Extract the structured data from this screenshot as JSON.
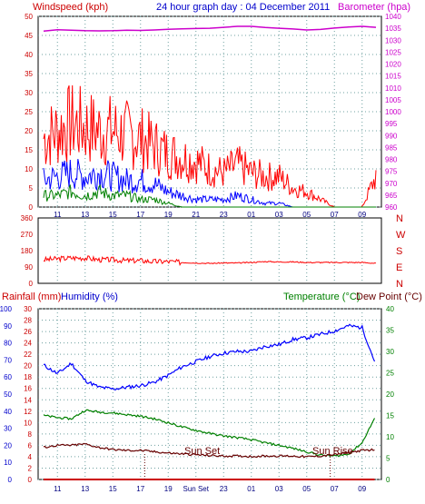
{
  "header": {
    "windspeed_label": "Windspeed (kph)",
    "title": "24 hour graph day : 04 December 2011",
    "barometer_label": "Barometer (hpa)",
    "colors": {
      "windspeed": "#cc0000",
      "title": "#0000cc",
      "barometer": "#cc00cc"
    }
  },
  "lower_header": {
    "rainfall_label": "Rainfall (mm)",
    "humidity_label": "Humidity (%)",
    "temperature_label": "Temperature (°C)",
    "dewpoint_label": "Dew Point (°C)"
  },
  "markers": {
    "sun_set": "Sun Set",
    "sun_rise": "Sun Rise"
  },
  "chart_data": [
    {
      "type": "line",
      "id": "wind_baro",
      "title": "24 hour graph day : 04 December 2011",
      "ylabel": "Windspeed (kph)",
      "ylabel_right": "Barometer (hpa)",
      "ylim": [
        0,
        50
      ],
      "ylim_right": [
        960,
        1040
      ],
      "yticks": [
        "0",
        "5",
        "10",
        "15",
        "20",
        "25",
        "30",
        "35",
        "40",
        "45",
        "50"
      ],
      "yticks_right": [
        "960",
        "965",
        "970",
        "975",
        "980",
        "985",
        "990",
        "995",
        "1000",
        "1005",
        "1010",
        "1015",
        "1020",
        "1025",
        "1030",
        "1035",
        "1040"
      ],
      "x_ticks": [
        "11",
        "13",
        "15",
        "17",
        "19",
        "21",
        "23",
        "01",
        "03",
        "05",
        "07",
        "09"
      ],
      "grid": true,
      "series": [
        {
          "name": "Barometer (hpa)",
          "color": "#cc00cc",
          "axis": "right",
          "x": [
            0,
            1,
            2,
            3,
            4,
            5,
            6,
            7,
            8,
            9,
            10,
            11,
            12,
            13,
            14,
            15,
            16,
            17,
            18,
            19,
            20,
            21,
            22,
            23,
            24
          ],
          "values": [
            1033.8,
            1034.4,
            1034.2,
            1034.0,
            1033.9,
            1034.0,
            1034.2,
            1034.1,
            1034.3,
            1034.6,
            1034.8,
            1034.9,
            1035.0,
            1035.4,
            1035.8,
            1035.8,
            1035.3,
            1035.0,
            1034.7,
            1034.3,
            1034.5,
            1035.1,
            1035.5,
            1035.8,
            1035.4
          ]
        },
        {
          "name": "Wind gust",
          "color": "#ff0000",
          "axis": "left",
          "x": [
            0,
            1,
            2,
            3,
            4,
            5,
            6,
            7,
            8,
            9,
            10,
            11,
            12,
            13,
            14,
            15,
            16,
            17,
            18,
            19,
            20,
            21,
            22,
            23,
            24
          ],
          "values": [
            18,
            20,
            22,
            21,
            20,
            20,
            19,
            18,
            16,
            14,
            13,
            12,
            10,
            9,
            11,
            9,
            8,
            8,
            5,
            4,
            2,
            0,
            0,
            0,
            8
          ]
        },
        {
          "name": "Average wind",
          "color": "#0000ff",
          "axis": "left",
          "x": [
            0,
            1,
            2,
            3,
            4,
            5,
            6,
            7,
            8,
            9,
            10,
            11,
            12,
            13,
            14,
            15,
            16,
            17,
            18,
            19,
            20,
            21,
            22,
            23,
            24
          ],
          "values": [
            7,
            8,
            9,
            8,
            9,
            8,
            7,
            7,
            6,
            4,
            3,
            2,
            2,
            2,
            3,
            2,
            1,
            1,
            0,
            0,
            0,
            0,
            0,
            0,
            0
          ]
        },
        {
          "name": "Wind calm",
          "color": "#008000",
          "axis": "left",
          "x": [
            0,
            1,
            2,
            3,
            4,
            5,
            6,
            7,
            8,
            9,
            10,
            11,
            12,
            13,
            14,
            15,
            16,
            17,
            18,
            19,
            20,
            21,
            22,
            23,
            24
          ],
          "values": [
            3,
            3,
            4,
            3,
            4,
            3,
            3,
            2,
            2,
            1,
            0,
            0,
            0,
            0,
            0,
            0,
            0,
            0,
            0,
            0,
            0,
            0,
            0,
            0,
            0
          ]
        }
      ]
    },
    {
      "type": "line",
      "id": "direction",
      "ylim": [
        0,
        360
      ],
      "yticks": [
        "0",
        "90",
        "180",
        "270",
        "360"
      ],
      "yticks_right": [
        "N",
        "E",
        "S",
        "W",
        "N"
      ],
      "x_ticks": [
        "11",
        "13",
        "15",
        "17",
        "19",
        "21",
        "23",
        "01",
        "03",
        "05",
        "07",
        "09"
      ],
      "series": [
        {
          "name": "Wind direction",
          "color": "#ff0000",
          "x": [
            0,
            1,
            2,
            3,
            4,
            5,
            6,
            7,
            8,
            9,
            10,
            11,
            12,
            13,
            14,
            15,
            16,
            17,
            18,
            19,
            20,
            21,
            22,
            23,
            24
          ],
          "values": [
            130,
            135,
            140,
            140,
            130,
            130,
            125,
            125,
            120,
            120,
            115,
            112,
            110,
            112,
            112,
            115,
            120,
            118,
            118,
            115,
            115,
            115,
            115,
            115,
            110
          ]
        }
      ]
    },
    {
      "type": "line",
      "id": "temp_hum_rain",
      "ylabel": "Humidity (%)",
      "ylabel_right": "Temperature (°C)",
      "ylim": [
        0,
        100
      ],
      "ylim_right": [
        0,
        40
      ],
      "yticks_humidity": [
        "0",
        "10",
        "20",
        "30",
        "40",
        "50",
        "60",
        "70",
        "80",
        "90",
        "100"
      ],
      "yticks_rainfall": [
        "0",
        "2",
        "4",
        "6",
        "8",
        "10",
        "12",
        "14",
        "16",
        "18",
        "20",
        "22",
        "24",
        "26",
        "28",
        "30"
      ],
      "yticks_right": [
        "0",
        "5",
        "10",
        "15",
        "20",
        "25",
        "30",
        "35",
        "40"
      ],
      "x_ticks": [
        "11",
        "13",
        "15",
        "17",
        "19",
        "Sun Set",
        "23",
        "01",
        "03",
        "05",
        "07",
        "09"
      ],
      "annotations": [
        "Sun Set",
        "Sun Rise"
      ],
      "series": [
        {
          "name": "Humidity (%)",
          "color": "#0000ff",
          "axis": "left",
          "x": [
            0,
            1,
            2,
            3,
            4,
            5,
            6,
            7,
            8,
            9,
            10,
            11,
            12,
            13,
            14,
            15,
            16,
            17,
            18,
            19,
            20,
            21,
            22,
            23,
            24
          ],
          "values": [
            67,
            62,
            68,
            58,
            54,
            53,
            54,
            55,
            57,
            61,
            66,
            69,
            72,
            74,
            75,
            75,
            78,
            79,
            82,
            83,
            85,
            87,
            90,
            89,
            67
          ]
        },
        {
          "name": "Temperature (°C)",
          "color": "#008000",
          "axis": "right",
          "x": [
            0,
            1,
            2,
            3,
            4,
            5,
            6,
            7,
            8,
            9,
            10,
            11,
            12,
            13,
            14,
            15,
            16,
            17,
            18,
            19,
            20,
            21,
            22,
            23,
            24
          ],
          "values": [
            15,
            14.5,
            14.2,
            16.2,
            15.8,
            15.6,
            15.2,
            14.8,
            14.2,
            13.3,
            12.3,
            11.5,
            10.8,
            10.2,
            9.8,
            9.3,
            8.6,
            8.0,
            7.3,
            6.5,
            5.7,
            5.5,
            5.9,
            8.6,
            15
          ]
        },
        {
          "name": "Dew Point (°C)",
          "color": "#660000",
          "axis": "right",
          "x": [
            0,
            1,
            2,
            3,
            4,
            5,
            6,
            7,
            8,
            9,
            10,
            11,
            12,
            13,
            14,
            15,
            16,
            17,
            18,
            19,
            20,
            21,
            22,
            23,
            24
          ],
          "values": [
            7.5,
            8,
            8,
            8.3,
            7.5,
            7,
            6.8,
            6.8,
            6.5,
            6.2,
            6,
            5.8,
            5.6,
            5.5,
            5.5,
            5.4,
            5.5,
            5.5,
            5.5,
            5.3,
            5.5,
            5.8,
            6.3,
            6.8,
            7
          ]
        },
        {
          "name": "Rainfall (mm)",
          "color": "#cc0000",
          "axis": "rainfall",
          "x": [
            0,
            24
          ],
          "values": [
            0,
            0
          ]
        }
      ]
    }
  ]
}
